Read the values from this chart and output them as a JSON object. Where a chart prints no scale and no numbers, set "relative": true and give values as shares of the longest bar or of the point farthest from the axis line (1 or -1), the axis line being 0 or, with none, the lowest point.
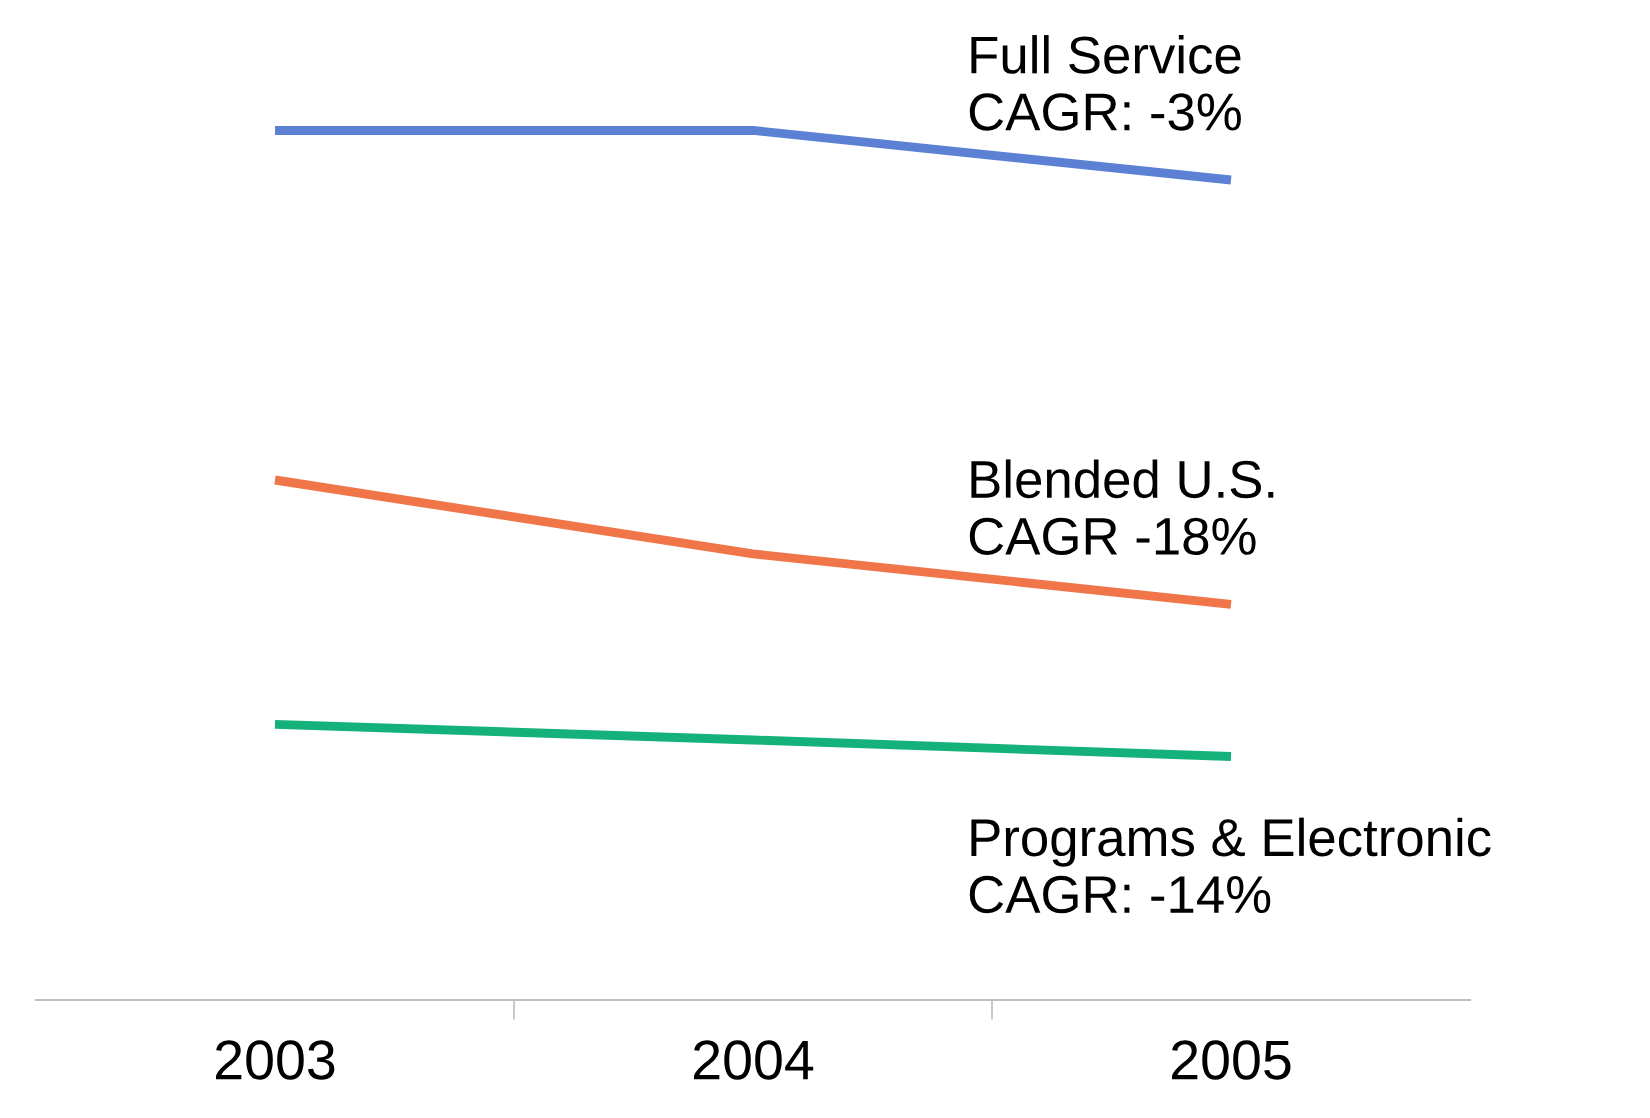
{
  "chart_data": {
    "type": "line",
    "relative": true,
    "categories": [
      "2003",
      "2004",
      "2005"
    ],
    "grid": false,
    "legend": false,
    "marker": "none",
    "line_style": "solid",
    "series": [
      {
        "name": "Full Service\nCAGR: -3%",
        "color": "#5b80d4",
        "values": [
          1,
          1,
          0.943
        ]
      },
      {
        "name": "Blended U.S.\nCAGR -18%",
        "color": "#f0764a",
        "values": [
          0.598,
          0.513,
          0.455
        ]
      },
      {
        "name": "Programs & Electronic\nCAGR: -14%",
        "color": "#14b27a",
        "values": [
          0.317,
          0.299,
          0.28
        ]
      }
    ]
  }
}
